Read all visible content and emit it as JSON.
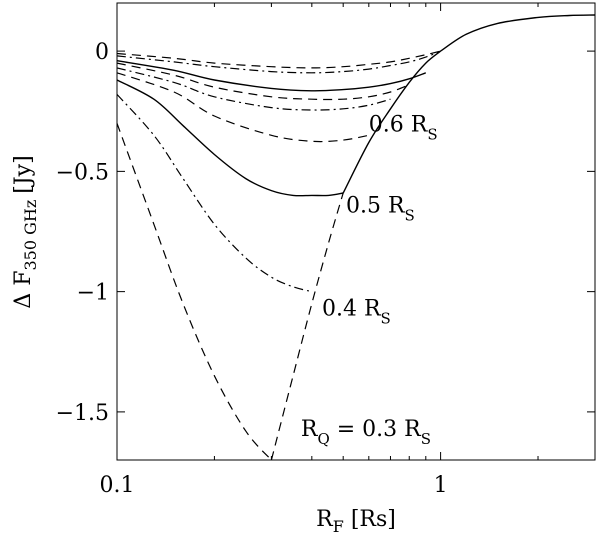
{
  "chart_data": {
    "type": "line",
    "xscale": "log",
    "xlim": [
      0.1,
      3
    ],
    "ylim": [
      -1.7,
      0.2
    ],
    "grid": false,
    "xlabel": {
      "main": "R",
      "sub": "F",
      "unit": " [Rs]"
    },
    "ylabel": {
      "main": "Δ F",
      "sub": "350 GHz",
      "unit": "[Jy]"
    },
    "xticks": [
      {
        "value": 0.1,
        "label": "0.1"
      },
      {
        "value": 1,
        "label": "1"
      }
    ],
    "yticks": [
      {
        "value": 0,
        "label": "0"
      },
      {
        "value": -0.5,
        "label": "−0.5"
      },
      {
        "value": -1,
        "label": "−1"
      },
      {
        "value": -1.5,
        "label": "−1.5"
      }
    ],
    "series": [
      {
        "style": "solid",
        "x": [
          1.0,
          1.2,
          1.5,
          2.0,
          2.5,
          3.0
        ],
        "y": [
          0.0,
          0.07,
          0.115,
          0.14,
          0.148,
          0.15
        ]
      },
      {
        "style": "solid",
        "x": [
          0.5,
          0.6,
          0.7,
          0.8,
          0.9,
          1.0
        ],
        "y": [
          -0.59,
          -0.38,
          -0.24,
          -0.13,
          -0.05,
          0.0
        ]
      },
      {
        "style": "dashed",
        "x": [
          0.3,
          0.35,
          0.4,
          0.45,
          0.5
        ],
        "y": [
          -1.7,
          -1.35,
          -1.05,
          -0.8,
          -0.59
        ]
      },
      {
        "style": "dashed",
        "x": [
          0.1,
          0.13,
          0.16,
          0.2,
          0.25,
          0.3
        ],
        "y": [
          -0.3,
          -0.72,
          -1.05,
          -1.35,
          -1.58,
          -1.7
        ]
      },
      {
        "style": "dashdot",
        "x": [
          0.1,
          0.13,
          0.16,
          0.2,
          0.25,
          0.3,
          0.35,
          0.4
        ],
        "y": [
          -0.18,
          -0.35,
          -0.53,
          -0.72,
          -0.86,
          -0.94,
          -0.98,
          -1.0
        ]
      },
      {
        "style": "solid",
        "x": [
          0.1,
          0.13,
          0.16,
          0.2,
          0.25,
          0.3,
          0.35,
          0.4,
          0.45,
          0.5
        ],
        "y": [
          -0.12,
          -0.2,
          -0.31,
          -0.43,
          -0.53,
          -0.58,
          -0.6,
          -0.6,
          -0.6,
          -0.59
        ]
      },
      {
        "style": "dashed",
        "x": [
          0.1,
          0.15,
          0.2,
          0.3,
          0.4,
          0.5,
          0.6
        ],
        "y": [
          -0.09,
          -0.17,
          -0.27,
          -0.35,
          -0.375,
          -0.37,
          -0.35
        ]
      },
      {
        "style": "dashdot",
        "x": [
          0.1,
          0.15,
          0.2,
          0.3,
          0.4,
          0.5,
          0.6,
          0.7
        ],
        "y": [
          -0.07,
          -0.13,
          -0.19,
          -0.235,
          -0.245,
          -0.24,
          -0.225,
          -0.2
        ]
      },
      {
        "style": "dashed",
        "x": [
          0.1,
          0.15,
          0.2,
          0.3,
          0.4,
          0.5,
          0.6,
          0.7,
          0.8
        ],
        "y": [
          -0.05,
          -0.1,
          -0.15,
          -0.19,
          -0.2,
          -0.2,
          -0.19,
          -0.17,
          -0.14
        ]
      },
      {
        "style": "solid",
        "x": [
          0.1,
          0.15,
          0.2,
          0.3,
          0.4,
          0.5,
          0.6,
          0.7,
          0.8,
          0.9
        ],
        "y": [
          -0.04,
          -0.08,
          -0.12,
          -0.155,
          -0.165,
          -0.16,
          -0.15,
          -0.135,
          -0.115,
          -0.09
        ]
      },
      {
        "style": "dashdot",
        "x": [
          0.1,
          0.15,
          0.2,
          0.3,
          0.4,
          0.5,
          0.6,
          0.7,
          0.8,
          0.9,
          1.0
        ],
        "y": [
          -0.02,
          -0.045,
          -0.065,
          -0.085,
          -0.09,
          -0.085,
          -0.075,
          -0.06,
          -0.045,
          -0.025,
          0.0
        ]
      },
      {
        "style": "dashed",
        "x": [
          0.1,
          0.15,
          0.2,
          0.3,
          0.4,
          0.5,
          0.6,
          0.7,
          0.8,
          0.9,
          1.0
        ],
        "y": [
          -0.01,
          -0.03,
          -0.05,
          -0.065,
          -0.07,
          -0.065,
          -0.055,
          -0.045,
          -0.03,
          -0.015,
          0.0
        ]
      }
    ],
    "annotations": [
      {
        "text": "0.6 R",
        "sub": "S",
        "x": 0.6,
        "y": -0.335
      },
      {
        "text": "0.5 R",
        "sub": "S",
        "x": 0.51,
        "y": -0.67
      },
      {
        "text": "0.4 R",
        "sub": "S",
        "x": 0.43,
        "y": -1.1
      },
      {
        "text": "R",
        "sub": "Q",
        "rest": " = 0.3 R",
        "sub2": "S",
        "x": 0.37,
        "y": -1.6
      }
    ]
  }
}
